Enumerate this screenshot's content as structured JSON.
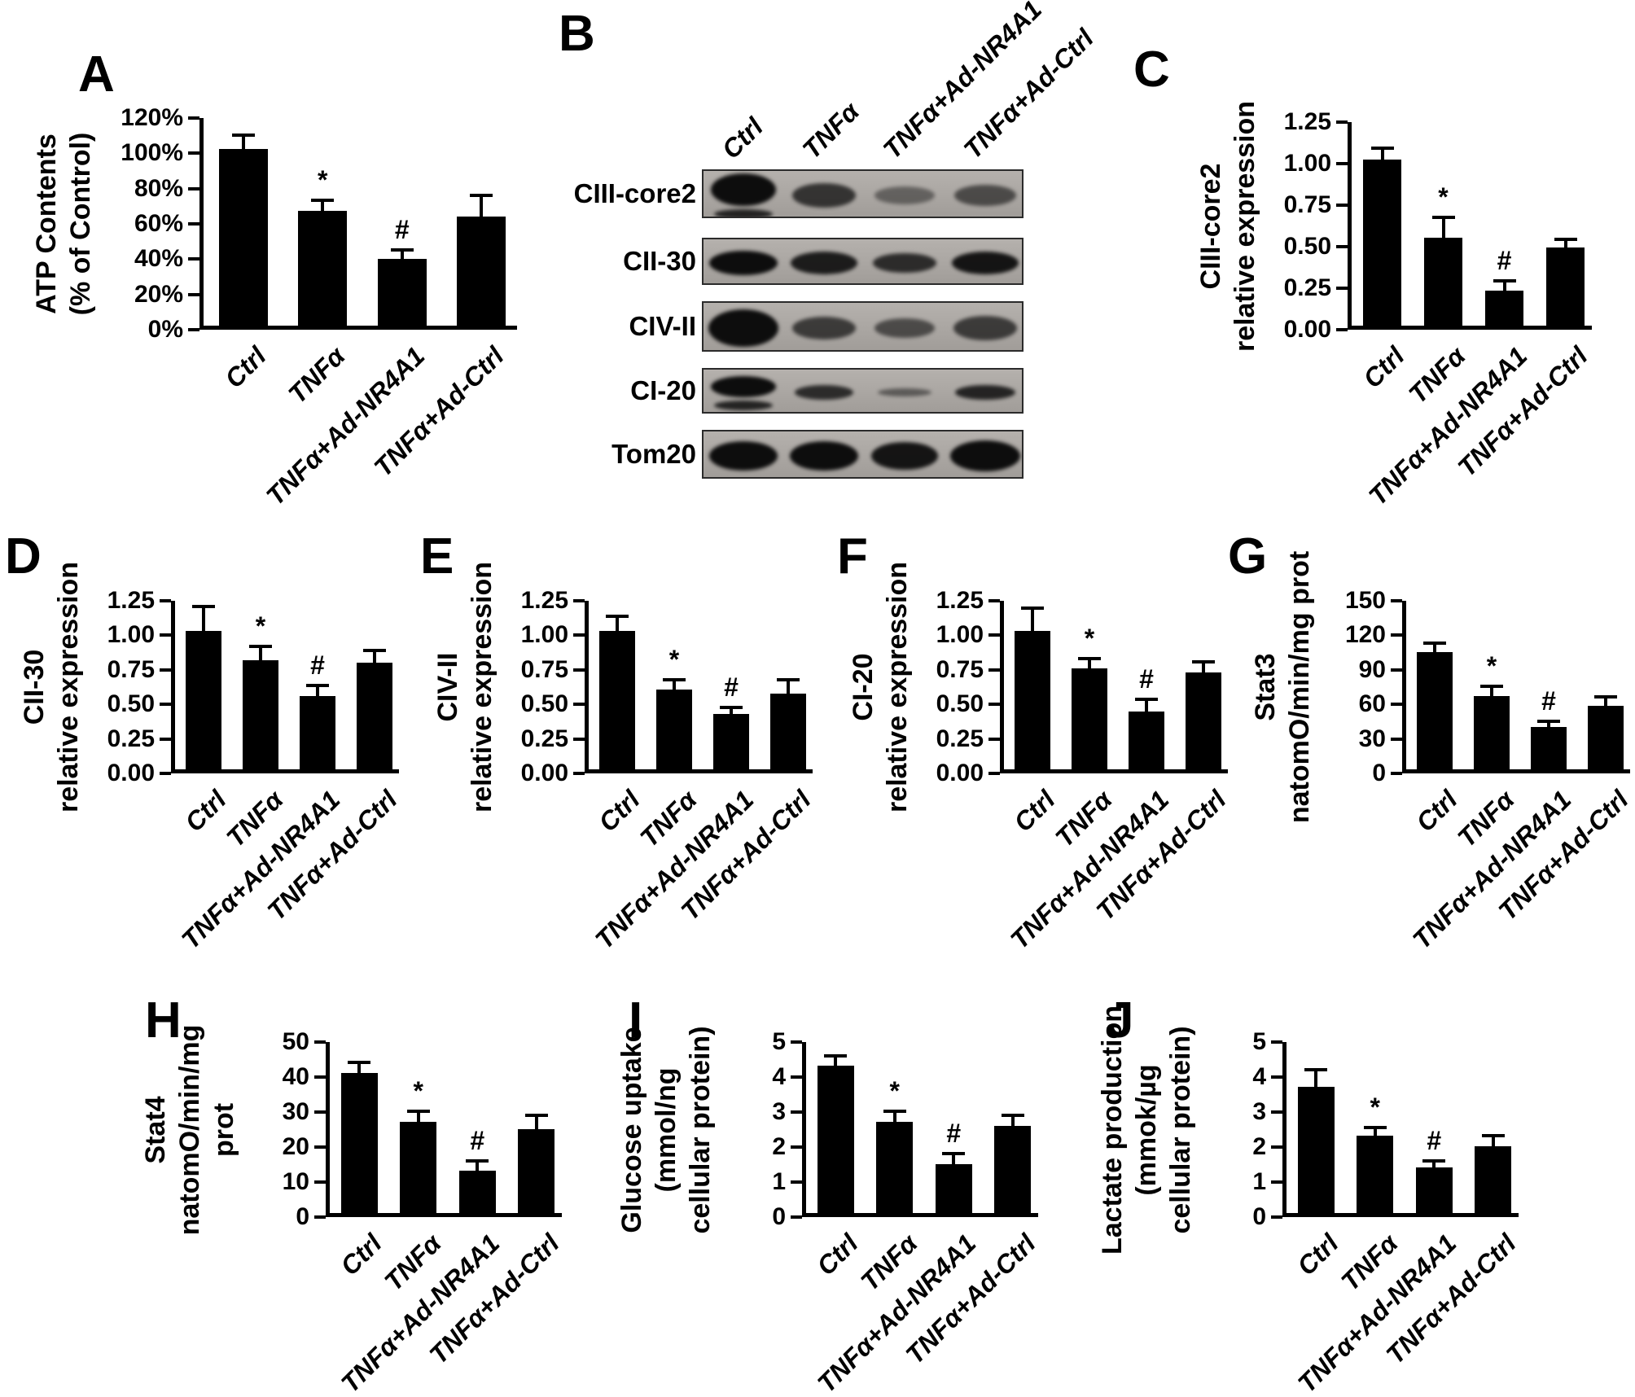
{
  "panels": {
    "A": "A",
    "B": "B",
    "C": "C",
    "D": "D",
    "E": "E",
    "F": "F",
    "G": "G",
    "H": "H",
    "I": "I",
    "J": "J"
  },
  "colors": {
    "background": "#ffffff",
    "bar": "#000000",
    "blot_background": "#aca8a4",
    "band": "#0d0d0d"
  },
  "categories": [
    "Ctrl",
    "TNFα",
    "TNFα+Ad-NR4A1",
    "TNFα+Ad-Ctrl"
  ],
  "chart_data": [
    {
      "id": "A",
      "type": "bar",
      "title": "",
      "ylabel_lines": [
        "ATP Contents",
        "(% of Control)"
      ],
      "categories": [
        "Ctrl",
        "TNFα",
        "TNFα+Ad-NR4A1",
        "TNFα+Ad-Ctrl"
      ],
      "values": [
        100,
        65,
        38,
        62
      ],
      "errors": [
        8,
        6,
        5,
        12
      ],
      "markers": [
        "",
        "*",
        "#",
        ""
      ],
      "ylim": [
        0,
        120
      ],
      "yticks": [
        "0%",
        "20%",
        "40%",
        "60%",
        "80%",
        "100%",
        "120%"
      ],
      "ytick_values": [
        0,
        20,
        40,
        60,
        80,
        100,
        120
      ]
    },
    {
      "id": "C",
      "type": "bar",
      "title": "",
      "ylabel_lines": [
        "CIII-core2",
        "relative expression"
      ],
      "categories": [
        "Ctrl",
        "TNFα",
        "TNFα+Ad-NR4A1",
        "TNFα+Ad-Ctrl"
      ],
      "values": [
        1.0,
        0.53,
        0.21,
        0.47
      ],
      "errors": [
        0.07,
        0.12,
        0.06,
        0.05
      ],
      "markers": [
        "",
        "*",
        "#",
        ""
      ],
      "ylim": [
        0,
        1.25
      ],
      "yticks": [
        "0.00",
        "0.25",
        "0.50",
        "0.75",
        "1.00",
        "1.25"
      ],
      "ytick_values": [
        0,
        0.25,
        0.5,
        0.75,
        1.0,
        1.25
      ]
    },
    {
      "id": "D",
      "type": "bar",
      "title": "",
      "ylabel_lines": [
        "CII-30",
        "relative expression"
      ],
      "categories": [
        "Ctrl",
        "TNFα",
        "TNFα+Ad-NR4A1",
        "TNFα+Ad-Ctrl"
      ],
      "values": [
        1.0,
        0.79,
        0.53,
        0.77
      ],
      "errors": [
        0.18,
        0.1,
        0.08,
        0.09
      ],
      "markers": [
        "",
        "*",
        "#",
        ""
      ],
      "ylim": [
        0,
        1.25
      ],
      "yticks": [
        "0.00",
        "0.25",
        "0.50",
        "0.75",
        "1.00",
        "1.25"
      ],
      "ytick_values": [
        0,
        0.25,
        0.5,
        0.75,
        1.0,
        1.25
      ]
    },
    {
      "id": "E",
      "type": "bar",
      "title": "",
      "ylabel_lines": [
        "CIV-II",
        "relative expression"
      ],
      "categories": [
        "Ctrl",
        "TNFα",
        "TNFα+Ad-NR4A1",
        "TNFα+Ad-Ctrl"
      ],
      "values": [
        1.0,
        0.58,
        0.4,
        0.55
      ],
      "errors": [
        0.11,
        0.07,
        0.05,
        0.1
      ],
      "markers": [
        "",
        "*",
        "#",
        ""
      ],
      "ylim": [
        0,
        1.25
      ],
      "yticks": [
        "0.00",
        "0.25",
        "0.50",
        "0.75",
        "1.00",
        "1.25"
      ],
      "ytick_values": [
        0,
        0.25,
        0.5,
        0.75,
        1.0,
        1.25
      ]
    },
    {
      "id": "F",
      "type": "bar",
      "title": "",
      "ylabel_lines": [
        "CI-20",
        "relative expression"
      ],
      "categories": [
        "Ctrl",
        "TNFα",
        "TNFα+Ad-NR4A1",
        "TNFα+Ad-Ctrl"
      ],
      "values": [
        1.0,
        0.73,
        0.42,
        0.7
      ],
      "errors": [
        0.17,
        0.07,
        0.09,
        0.08
      ],
      "markers": [
        "",
        "*",
        "#",
        ""
      ],
      "ylim": [
        0,
        1.25
      ],
      "yticks": [
        "0.00",
        "0.25",
        "0.50",
        "0.75",
        "1.00",
        "1.25"
      ],
      "ytick_values": [
        0,
        0.25,
        0.5,
        0.75,
        1.0,
        1.25
      ]
    },
    {
      "id": "G",
      "type": "bar",
      "title": "",
      "ylabel_lines": [
        "Stat3",
        "natomO/min/mg prot"
      ],
      "categories": [
        "Ctrl",
        "TNFα",
        "TNFα+Ad-NR4A1",
        "TNFα+Ad-Ctrl"
      ],
      "values": [
        102,
        64,
        37,
        55
      ],
      "errors": [
        8,
        8,
        5,
        8
      ],
      "markers": [
        "",
        "*",
        "#",
        ""
      ],
      "ylim": [
        0,
        150
      ],
      "yticks": [
        "0",
        "30",
        "60",
        "90",
        "120",
        "150"
      ],
      "ytick_values": [
        0,
        30,
        60,
        90,
        120,
        150
      ]
    },
    {
      "id": "H",
      "type": "bar",
      "title": "",
      "ylabel_lines": [
        "Stat4",
        "natomO/min/mg",
        "prot"
      ],
      "categories": [
        "Ctrl",
        "TNFα",
        "TNFα+Ad-NR4A1",
        "TNFα+Ad-Ctrl"
      ],
      "values": [
        40,
        26,
        12,
        24
      ],
      "errors": [
        3,
        3,
        3,
        4
      ],
      "markers": [
        "",
        "*",
        "#",
        ""
      ],
      "ylim": [
        0,
        50
      ],
      "yticks": [
        "0",
        "10",
        "20",
        "30",
        "40",
        "50"
      ],
      "ytick_values": [
        0,
        10,
        20,
        30,
        40,
        50
      ]
    },
    {
      "id": "I",
      "type": "bar",
      "title": "",
      "ylabel_lines": [
        "Glucose uptake",
        "(mmol/ng",
        "cellular protein)"
      ],
      "categories": [
        "Ctrl",
        "TNFα",
        "TNFα+Ad-NR4A1",
        "TNFα+Ad-Ctrl"
      ],
      "values": [
        4.2,
        2.6,
        1.4,
        2.5
      ],
      "errors": [
        0.3,
        0.3,
        0.3,
        0.3
      ],
      "markers": [
        "",
        "*",
        "#",
        ""
      ],
      "ylim": [
        0,
        5
      ],
      "yticks": [
        "0",
        "1",
        "2",
        "3",
        "4",
        "5"
      ],
      "ytick_values": [
        0,
        1,
        2,
        3,
        4,
        5
      ]
    },
    {
      "id": "J",
      "type": "bar",
      "title": "",
      "ylabel_lines": [
        "Lactate production",
        "(mmok/µg",
        "cellular protein)"
      ],
      "categories": [
        "Ctrl",
        "TNFα",
        "TNFα+Ad-NR4A1",
        "TNFα+Ad-Ctrl"
      ],
      "values": [
        3.6,
        2.2,
        1.3,
        1.9
      ],
      "errors": [
        0.5,
        0.25,
        0.2,
        0.3
      ],
      "markers": [
        "",
        "*",
        "#",
        ""
      ],
      "ylim": [
        0,
        5
      ],
      "yticks": [
        "0",
        "1",
        "2",
        "3",
        "4",
        "5"
      ],
      "ytick_values": [
        0,
        1,
        2,
        3,
        4,
        5
      ]
    }
  ],
  "blot": {
    "col_labels": [
      "Ctrl",
      "TNFα",
      "TNFα+Ad-NR4A1",
      "TNFα+Ad-Ctrl"
    ],
    "rows": [
      {
        "label": "CIII-core2",
        "heights": [
          40,
          30,
          22,
          26
        ],
        "widths": [
          80,
          78,
          74,
          76
        ],
        "opacity": [
          1,
          0.75,
          0.45,
          0.6
        ],
        "doublet": [
          true,
          false,
          false,
          false
        ]
      },
      {
        "label": "CII-30",
        "heights": [
          30,
          28,
          24,
          28
        ],
        "widths": [
          84,
          82,
          78,
          82
        ],
        "opacity": [
          1,
          0.9,
          0.8,
          0.95
        ],
        "doublet": [
          false,
          false,
          false,
          false
        ]
      },
      {
        "label": "CIV-II",
        "heights": [
          46,
          28,
          24,
          30
        ],
        "widths": [
          86,
          78,
          74,
          78
        ],
        "opacity": [
          1,
          0.7,
          0.6,
          0.7
        ],
        "doublet": [
          false,
          false,
          false,
          false
        ]
      },
      {
        "label": "CI-20",
        "heights": [
          26,
          18,
          10,
          18
        ],
        "widths": [
          80,
          72,
          66,
          74
        ],
        "opacity": [
          1,
          0.8,
          0.5,
          0.85
        ],
        "doublet": [
          true,
          false,
          false,
          false
        ]
      },
      {
        "label": "Tom20",
        "heights": [
          36,
          36,
          34,
          38
        ],
        "widths": [
          84,
          84,
          82,
          86
        ],
        "opacity": [
          1,
          1,
          0.95,
          1
        ],
        "doublet": [
          false,
          false,
          false,
          false
        ]
      }
    ]
  }
}
